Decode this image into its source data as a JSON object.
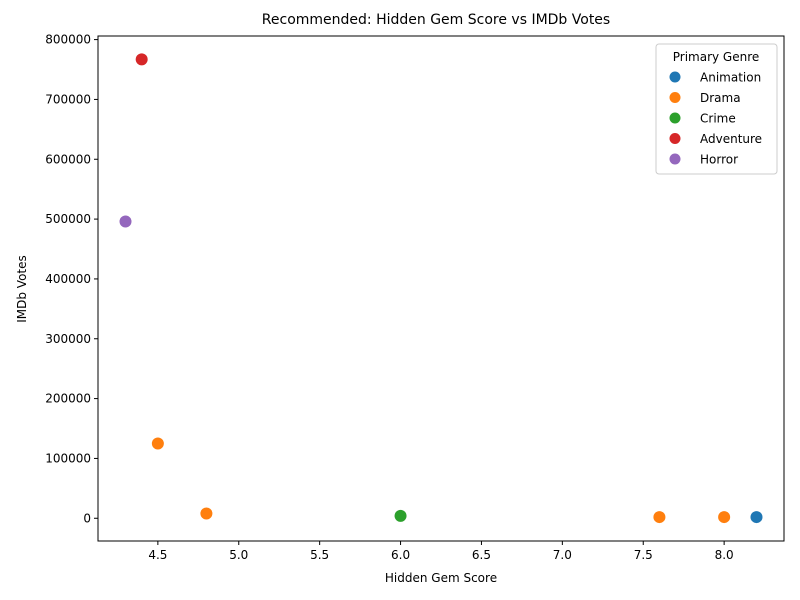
{
  "chart_data": {
    "type": "scatter",
    "title": "Recommended: Hidden Gem Score vs IMDb Votes",
    "xlabel": "Hidden Gem Score",
    "ylabel": "IMDb Votes",
    "xlim": [
      4.13,
      8.37
    ],
    "ylim": [
      -38000,
      806000
    ],
    "x_ticks": [
      "4.5",
      "5.0",
      "5.5",
      "6.0",
      "6.5",
      "7.0",
      "7.5",
      "8.0"
    ],
    "y_ticks": [
      "0",
      "100000",
      "200000",
      "300000",
      "400000",
      "500000",
      "600000",
      "700000",
      "800000"
    ],
    "grid": false,
    "legend": {
      "title": "Primary Genre",
      "placement": "top-right",
      "entries": [
        "Animation",
        "Drama",
        "Crime",
        "Adventure",
        "Horror"
      ]
    },
    "series": [
      {
        "name": "Animation",
        "color": "#1f77b4",
        "points": [
          {
            "x": 8.2,
            "y": 2000
          }
        ]
      },
      {
        "name": "Drama",
        "color": "#ff7f0e",
        "points": [
          {
            "x": 4.5,
            "y": 125000
          },
          {
            "x": 4.8,
            "y": 8000
          },
          {
            "x": 7.6,
            "y": 2000
          },
          {
            "x": 8.0,
            "y": 2000
          }
        ]
      },
      {
        "name": "Crime",
        "color": "#2ca02c",
        "points": [
          {
            "x": 6.0,
            "y": 4000
          }
        ]
      },
      {
        "name": "Adventure",
        "color": "#d62728",
        "points": [
          {
            "x": 4.4,
            "y": 767000
          }
        ]
      },
      {
        "name": "Horror",
        "color": "#9467bd",
        "points": [
          {
            "x": 4.3,
            "y": 496000
          }
        ]
      }
    ]
  }
}
